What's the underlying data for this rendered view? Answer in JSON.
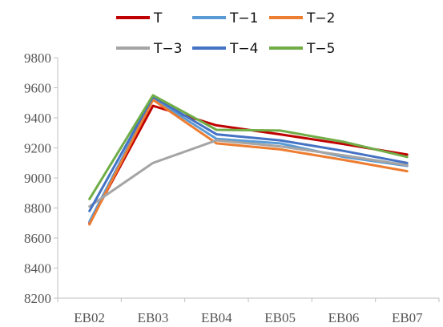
{
  "chart_data": {
    "type": "line",
    "categories": [
      "EB02",
      "EB03",
      "EB04",
      "EB05",
      "EB06",
      "EB07"
    ],
    "ylim": [
      8200,
      9800
    ],
    "yticks": [
      8200,
      8400,
      8600,
      8800,
      9000,
      9200,
      9400,
      9600,
      9800
    ],
    "legend_position": "top",
    "grid": false,
    "series": [
      {
        "name": "T",
        "color": "#C00000",
        "values": [
          8700,
          9480,
          9350,
          9290,
          9225,
          9155
        ]
      },
      {
        "name": "T−1",
        "color": "#5B9BD5",
        "values": [
          8710,
          9530,
          9260,
          9230,
          9140,
          9080
        ]
      },
      {
        "name": "T−2",
        "color": "#ED7D31",
        "values": [
          8690,
          9520,
          9230,
          9190,
          9120,
          9045
        ]
      },
      {
        "name": "T−3",
        "color": "#A5A5A5",
        "values": [
          8810,
          9100,
          9250,
          9210,
          9150,
          9085
        ]
      },
      {
        "name": "T−4",
        "color": "#4472C4",
        "values": [
          8780,
          9540,
          9290,
          9250,
          9180,
          9100
        ]
      },
      {
        "name": "T−5",
        "color": "#70AD47",
        "values": [
          8860,
          9550,
          9320,
          9315,
          9240,
          9140
        ]
      }
    ]
  }
}
